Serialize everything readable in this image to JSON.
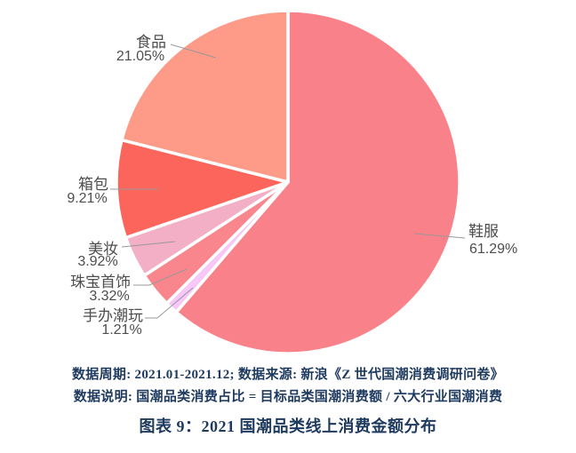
{
  "figure": {
    "caption": "图表 9：2021 国潮品类线上消费金额分布",
    "notes": [
      "数据周期: 2021.01-2021.12;  数据来源: 新浪《Z 世代国潮消费调研问卷》",
      "数据说明: 国潮品类消费占比 = 目标品类国潮消费额 / 六大行业国潮消费"
    ],
    "text_color": "#1E3A5F"
  },
  "chart_data": {
    "type": "pie",
    "title": "图表 9：2021 国潮品类线上消费金额分布",
    "start_angle": "top",
    "direction": "clockwise",
    "legend": "none",
    "label_text_color": "#4D4D4D",
    "leader_line_color": "#999999",
    "slice_border_color": "#FFFFFF",
    "slices": [
      {
        "key": "xiefu",
        "name": "鞋服",
        "value": 61.29,
        "percent_label": "61.29%",
        "color": "#F9828A"
      },
      {
        "key": "shouban-chaowan",
        "name": "手办潮玩",
        "value": 1.21,
        "percent_label": "1.21%",
        "color": "#F7C7F8"
      },
      {
        "key": "zhubao-shoushi",
        "name": "珠宝首饰",
        "value": 3.32,
        "percent_label": "3.32%",
        "color": "#F9868C"
      },
      {
        "key": "meizhuang",
        "name": "美妆",
        "value": 3.92,
        "percent_label": "3.92%",
        "color": "#F3AFC6"
      },
      {
        "key": "xiangbao",
        "name": "箱包",
        "value": 9.21,
        "percent_label": "9.21%",
        "color": "#FB655C"
      },
      {
        "key": "shipin",
        "name": "食品",
        "value": 21.05,
        "percent_label": "21.05%",
        "color": "#FD9A88"
      }
    ]
  }
}
